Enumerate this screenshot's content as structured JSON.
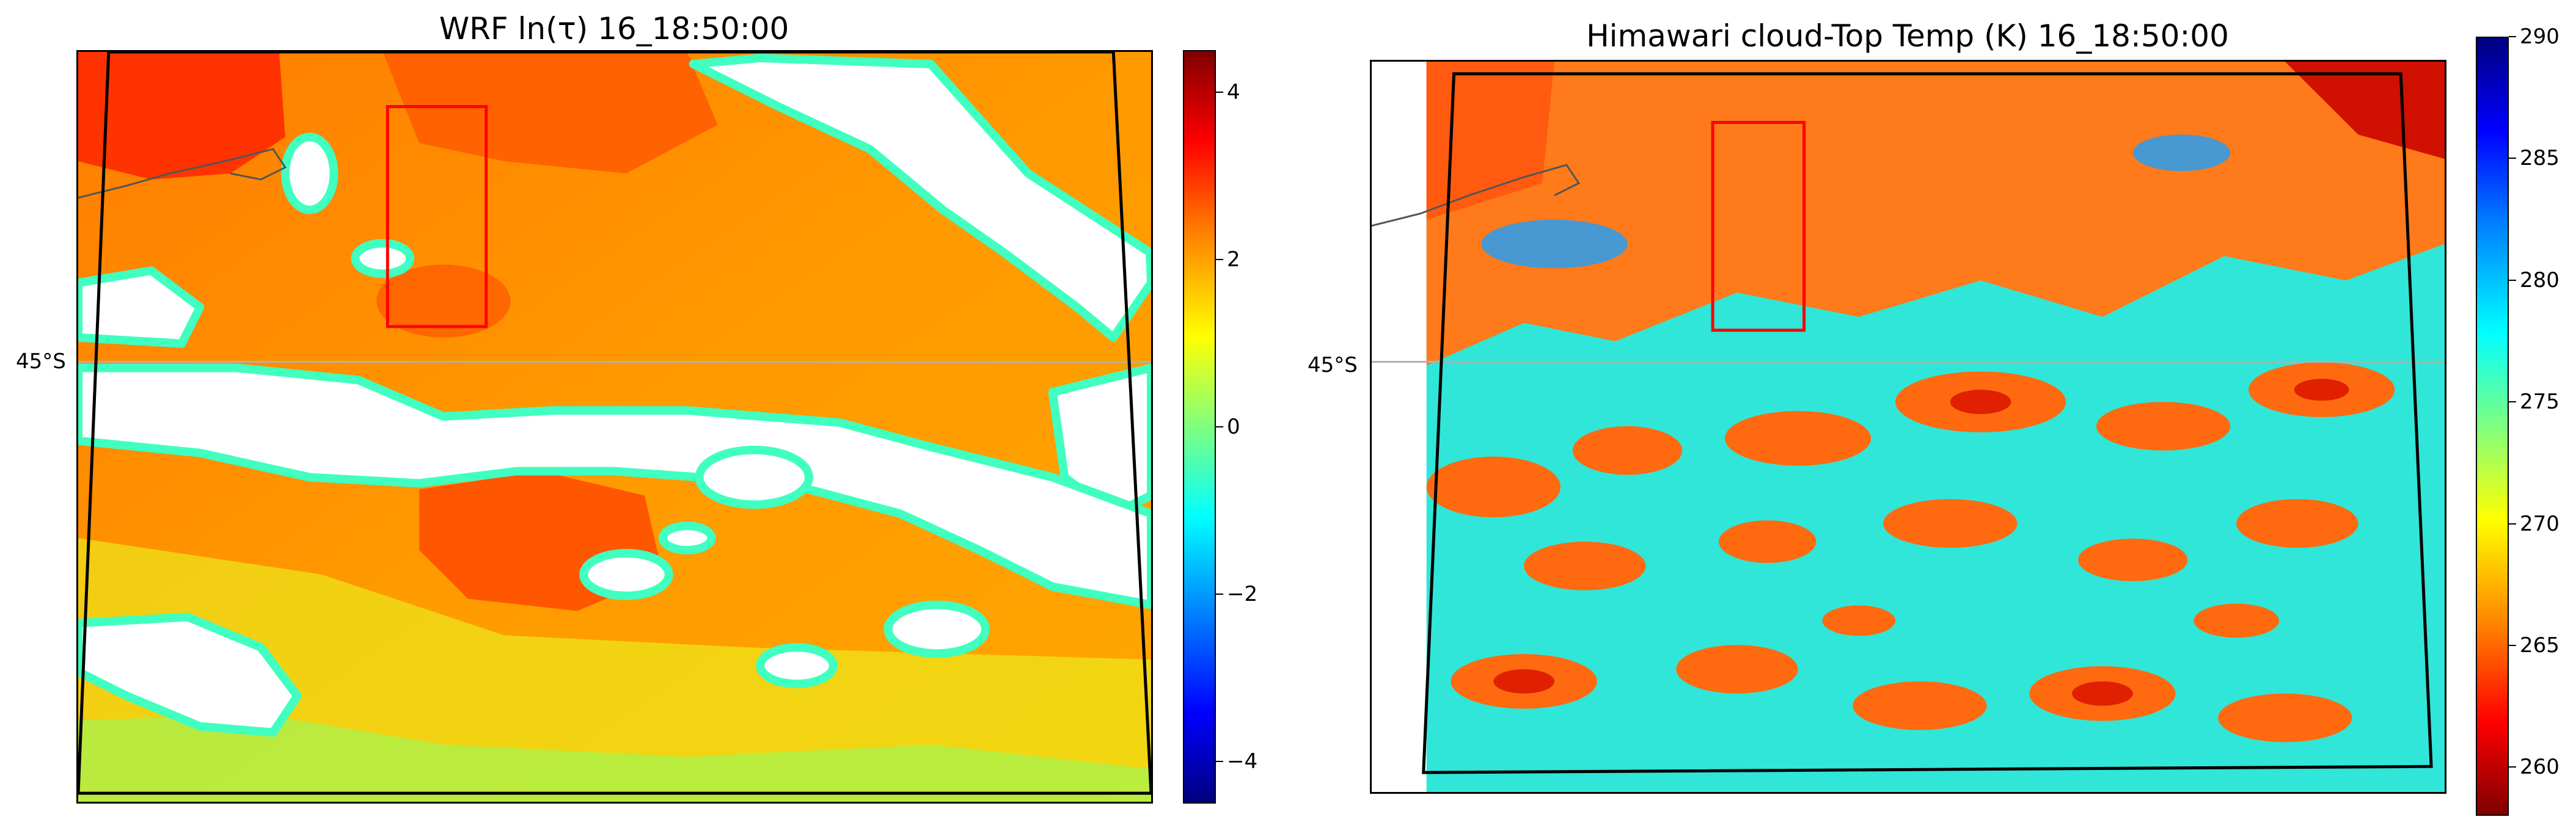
{
  "chart_data": [
    {
      "type": "heatmap",
      "title": "WRF ln(τ) 16_18:50:00",
      "lat_label": "45°S",
      "colormap": "jet",
      "colorbar": {
        "range": [
          -4.5,
          4.5
        ],
        "ticks": [
          "−4",
          "−2",
          "0",
          "2",
          "4"
        ],
        "tick_values": [
          -4,
          -2,
          0,
          2,
          4
        ]
      },
      "regions": {
        "cloud_free": "white",
        "typical_value": 2.3,
        "thick_cloud_value": 3.5
      },
      "highlight_box_color": "#ff0000",
      "domain_outline_color": "#000000"
    },
    {
      "type": "heatmap",
      "title": "Himawari cloud-Top Temp (K) 16_18:50:00",
      "lat_label": "45°S",
      "colormap": "jet_r",
      "colorbar": {
        "range": [
          258,
          290
        ],
        "ticks": [
          "260",
          "265",
          "270",
          "275",
          "280",
          "285",
          "290"
        ],
        "tick_values": [
          260,
          265,
          270,
          275,
          280,
          285,
          290
        ]
      },
      "regions": {
        "cold_cloud_value": 263,
        "warm_surface_value": 277
      },
      "highlight_box_color": "#ff0000",
      "domain_outline_color": "#000000"
    }
  ]
}
